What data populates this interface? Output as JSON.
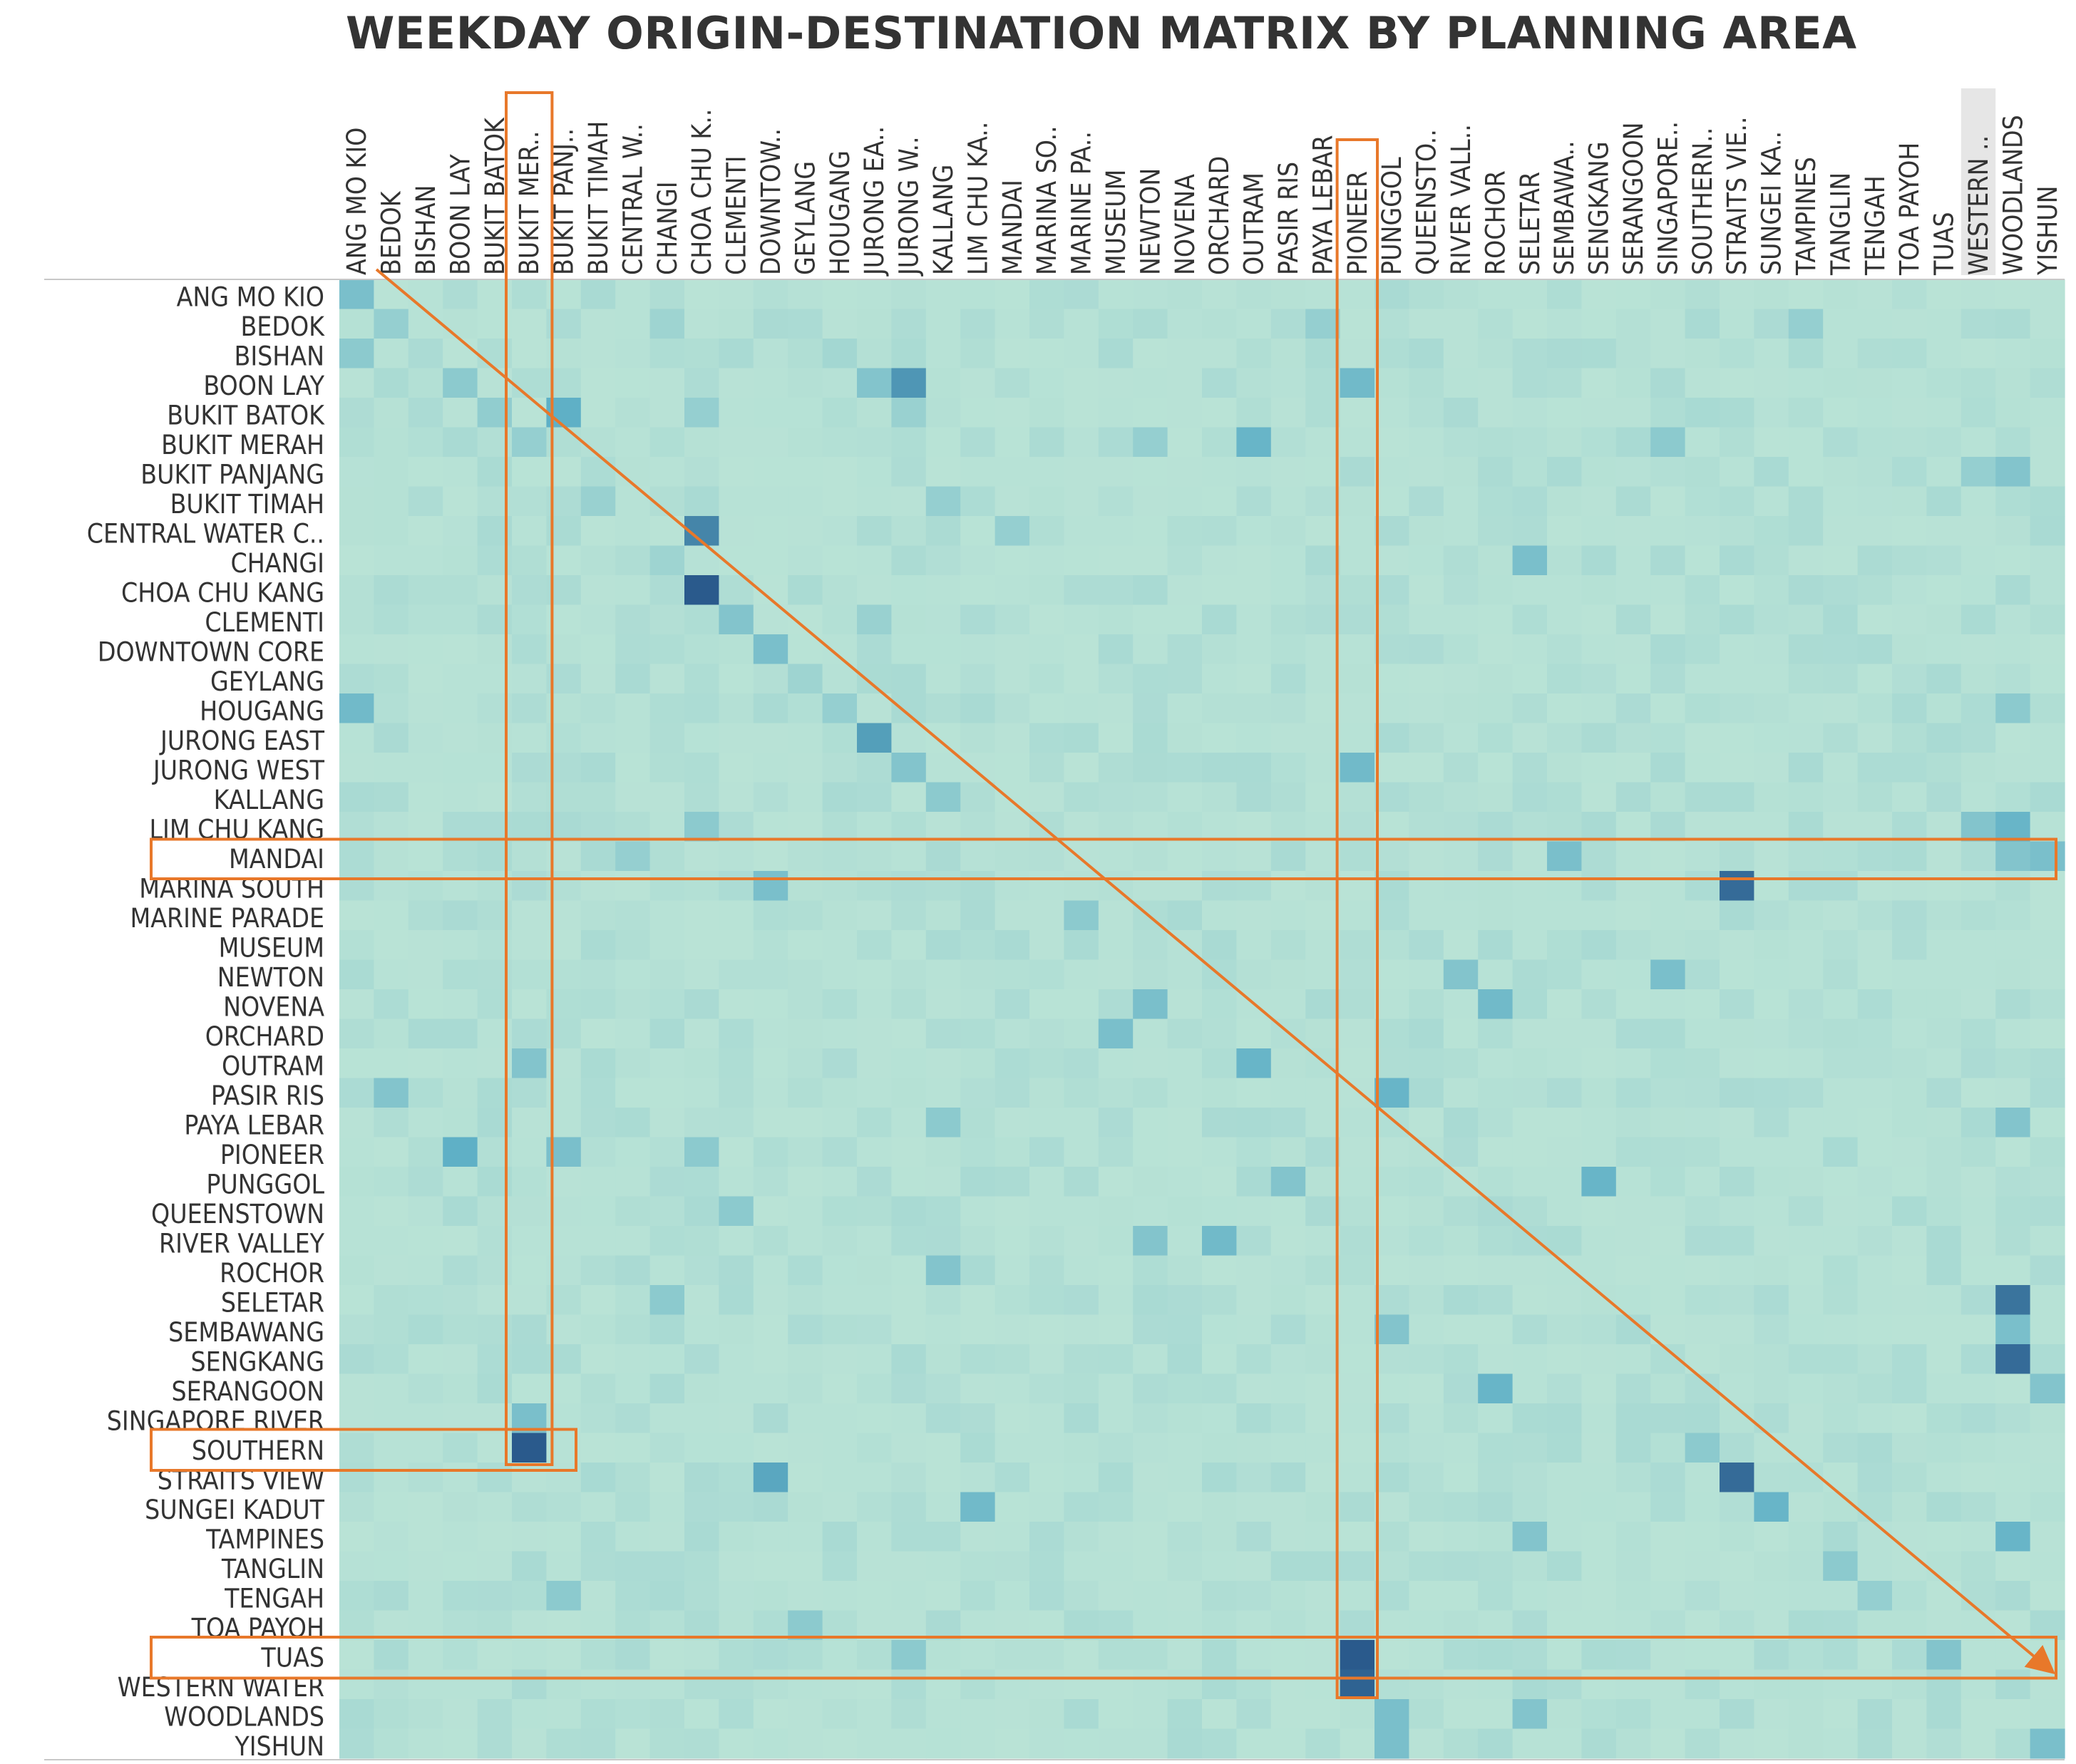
{
  "chart_data": {
    "type": "heatmap",
    "title": "WEEKDAY ORIGIN-DESTINATION MATRIX BY PLANNING AREA",
    "xlabel": "",
    "ylabel": "",
    "legend": "none",
    "grid": false,
    "columns": [
      "ANG MO KIO",
      "BEDOK",
      "BISHAN",
      "BOON LAY",
      "BUKIT BATOK",
      "BUKIT MER..",
      "BUKIT PANJ..",
      "BUKIT TIMAH",
      "CENTRAL W..",
      "CHANGI",
      "CHOA CHU K..",
      "CLEMENTI",
      "DOWNTOW..",
      "GEYLANG",
      "HOUGANG",
      "JURONG EA..",
      "JURONG W..",
      "KALLANG",
      "LIM CHU KA..",
      "MANDAI",
      "MARINA SO..",
      "MARINE PA..",
      "MUSEUM",
      "NEWTON",
      "NOVENA",
      "ORCHARD",
      "OUTRAM",
      "PASIR RIS",
      "PAYA LEBAR",
      "PIONEER",
      "PUNGGOL",
      "QUEENSTO..",
      "RIVER VALL..",
      "ROCHOR",
      "SELETAR",
      "SEMBAWA..",
      "SENGKANG",
      "SERANGOON",
      "SINGAPORE..",
      "SOUTHERN..",
      "STRAITS VIE..",
      "SUNGEI KA..",
      "TAMPINES",
      "TANGLIN",
      "TENGAH",
      "TOA PAYOH",
      "TUAS",
      "WESTERN ..",
      "WOODLANDS",
      "YISHUN"
    ],
    "rows": [
      "ANG MO KIO",
      "BEDOK",
      "BISHAN",
      "BOON LAY",
      "BUKIT BATOK",
      "BUKIT MERAH",
      "BUKIT PANJANG",
      "BUKIT TIMAH",
      "CENTRAL WATER C..",
      "CHANGI",
      "CHOA CHU KANG",
      "CLEMENTI",
      "DOWNTOWN CORE",
      "GEYLANG",
      "HOUGANG",
      "JURONG EAST",
      "JURONG WEST",
      "KALLANG",
      "LIM CHU KANG",
      "MANDAI",
      "MARINA SOUTH",
      "MARINE PARADE",
      "MUSEUM",
      "NEWTON",
      "NOVENA",
      "ORCHARD",
      "OUTRAM",
      "PASIR RIS",
      "PAYA LEBAR",
      "PIONEER",
      "PUNGGOL",
      "QUEENSTOWN",
      "RIVER VALLEY",
      "ROCHOR",
      "SELETAR",
      "SEMBAWANG",
      "SENGKANG",
      "SERANGOON",
      "SINGAPORE RIVER",
      "SOUTHERN",
      "STRAITS VIEW",
      "SUNGEI KADUT",
      "TAMPINES",
      "TANGLIN",
      "TENGAH",
      "TOA PAYOH",
      "TUAS",
      "WESTERN WATER",
      "WOODLANDS",
      "YISHUN"
    ],
    "color_scale": {
      "low": "#b9e3d6",
      "mid": "#5fb0c6",
      "high": "#2a5a8c"
    },
    "intensity_note": "0 = lightest cell, 1 = darkest cell",
    "hot_cells": [
      {
        "row": "ANG MO KIO",
        "col": "ANG MO KIO",
        "v": 0.35
      },
      {
        "row": "BEDOK",
        "col": "BEDOK",
        "v": 0.2
      },
      {
        "row": "BEDOK",
        "col": "CHANGI",
        "v": 0.15
      },
      {
        "row": "BEDOK",
        "col": "PAYA LEBAR",
        "v": 0.2
      },
      {
        "row": "BEDOK",
        "col": "TAMPINES",
        "v": 0.2
      },
      {
        "row": "BISHAN",
        "col": "ANG MO KIO",
        "v": 0.25
      },
      {
        "row": "BISHAN",
        "col": "HOUGANG",
        "v": 0.12
      },
      {
        "row": "BOON LAY",
        "col": "BOON LAY",
        "v": 0.25
      },
      {
        "row": "BOON LAY",
        "col": "JURONG EA..",
        "v": 0.3
      },
      {
        "row": "BOON LAY",
        "col": "JURONG W..",
        "v": 0.65
      },
      {
        "row": "BOON LAY",
        "col": "PIONEER",
        "v": 0.4
      },
      {
        "row": "BUKIT BATOK",
        "col": "BUKIT BATOK",
        "v": 0.22
      },
      {
        "row": "BUKIT BATOK",
        "col": "BUKIT PANJ..",
        "v": 0.5
      },
      {
        "row": "BUKIT BATOK",
        "col": "CHOA CHU K..",
        "v": 0.2
      },
      {
        "row": "BUKIT BATOK",
        "col": "JURONG W..",
        "v": 0.18
      },
      {
        "row": "BUKIT MERAH",
        "col": "BUKIT MER..",
        "v": 0.2
      },
      {
        "row": "BUKIT MERAH",
        "col": "NEWTON",
        "v": 0.2
      },
      {
        "row": "BUKIT MERAH",
        "col": "OUTRAM",
        "v": 0.45
      },
      {
        "row": "BUKIT MERAH",
        "col": "SINGAPORE..",
        "v": 0.25
      },
      {
        "row": "BUKIT PANJANG",
        "col": "WOODLANDS",
        "v": 0.3
      },
      {
        "row": "BUKIT PANJANG",
        "col": "WESTERN ..",
        "v": 0.2
      },
      {
        "row": "BUKIT TIMAH",
        "col": "BUKIT TIMAH",
        "v": 0.18
      },
      {
        "row": "BUKIT TIMAH",
        "col": "KALLANG",
        "v": 0.2
      },
      {
        "row": "CENTRAL WATER C..",
        "col": "CHOA CHU K..",
        "v": 0.75
      },
      {
        "row": "CENTRAL WATER C..",
        "col": "MANDAI",
        "v": 0.2
      },
      {
        "row": "CHANGI",
        "col": "SELETAR",
        "v": 0.35
      },
      {
        "row": "CHANGI",
        "col": "CHANGI",
        "v": 0.15
      },
      {
        "row": "CHOA CHU KANG",
        "col": "CHOA CHU K..",
        "v": 1.0
      },
      {
        "row": "CLEMENTI",
        "col": "CLEMENTI",
        "v": 0.3
      },
      {
        "row": "CLEMENTI",
        "col": "JURONG EA..",
        "v": 0.18
      },
      {
        "row": "DOWNTOWN CORE",
        "col": "DOWNTOW..",
        "v": 0.35
      },
      {
        "row": "GEYLANG",
        "col": "GEYLANG",
        "v": 0.15
      },
      {
        "row": "HOUGANG",
        "col": "ANG MO KIO",
        "v": 0.4
      },
      {
        "row": "HOUGANG",
        "col": "HOUGANG",
        "v": 0.2
      },
      {
        "row": "HOUGANG",
        "col": "WOODLANDS",
        "v": 0.25
      },
      {
        "row": "JURONG EAST",
        "col": "JURONG EA..",
        "v": 0.6
      },
      {
        "row": "JURONG WEST",
        "col": "JURONG W..",
        "v": 0.3
      },
      {
        "row": "JURONG WEST",
        "col": "PIONEER",
        "v": 0.4
      },
      {
        "row": "KALLANG",
        "col": "KALLANG",
        "v": 0.25
      },
      {
        "row": "LIM CHU KANG",
        "col": "WOODLANDS",
        "v": 0.45
      },
      {
        "row": "LIM CHU KANG",
        "col": "WESTERN ..",
        "v": 0.3
      },
      {
        "row": "LIM CHU KANG",
        "col": "CHOA CHU K..",
        "v": 0.25
      },
      {
        "row": "MANDAI",
        "col": "SEMBAWA..",
        "v": 0.35
      },
      {
        "row": "MANDAI",
        "col": "WOODLANDS",
        "v": 0.3
      },
      {
        "row": "MANDAI",
        "col": "YISHUN",
        "v": 0.35
      },
      {
        "row": "MANDAI",
        "col": "CENTRAL W..",
        "v": 0.2
      },
      {
        "row": "MARINA SOUTH",
        "col": "STRAITS VIE..",
        "v": 0.9
      },
      {
        "row": "MARINA SOUTH",
        "col": "DOWNTOW..",
        "v": 0.35
      },
      {
        "row": "MARINE PARADE",
        "col": "MARINE PA..",
        "v": 0.25
      },
      {
        "row": "NEWTON",
        "col": "RIVER VALL..",
        "v": 0.3
      },
      {
        "row": "NEWTON",
        "col": "SINGAPORE..",
        "v": 0.35
      },
      {
        "row": "NOVENA",
        "col": "NEWTON",
        "v": 0.35
      },
      {
        "row": "NOVENA",
        "col": "ROCHOR",
        "v": 0.4
      },
      {
        "row": "ORCHARD",
        "col": "MUSEUM",
        "v": 0.35
      },
      {
        "row": "OUTRAM",
        "col": "OUTRAM",
        "v": 0.45
      },
      {
        "row": "OUTRAM",
        "col": "BUKIT MER..",
        "v": 0.3
      },
      {
        "row": "PASIR RIS",
        "col": "PUNGGOL",
        "v": 0.45
      },
      {
        "row": "PASIR RIS",
        "col": "BEDOK",
        "v": 0.3
      },
      {
        "row": "PAYA LEBAR",
        "col": "KALLANG",
        "v": 0.25
      },
      {
        "row": "PAYA LEBAR",
        "col": "WOODLANDS",
        "v": 0.3
      },
      {
        "row": "PIONEER",
        "col": "BOON LAY",
        "v": 0.5
      },
      {
        "row": "PIONEER",
        "col": "BUKIT PANJ..",
        "v": 0.35
      },
      {
        "row": "PIONEER",
        "col": "CHOA CHU K..",
        "v": 0.25
      },
      {
        "row": "PUNGGOL",
        "col": "SENGKANG",
        "v": 0.45
      },
      {
        "row": "PUNGGOL",
        "col": "PASIR RIS",
        "v": 0.3
      },
      {
        "row": "QUEENSTOWN",
        "col": "CLEMENTI",
        "v": 0.25
      },
      {
        "row": "RIVER VALLEY",
        "col": "ORCHARD",
        "v": 0.4
      },
      {
        "row": "RIVER VALLEY",
        "col": "NEWTON",
        "v": 0.3
      },
      {
        "row": "ROCHOR",
        "col": "KALLANG",
        "v": 0.3
      },
      {
        "row": "SELETAR",
        "col": "WOODLANDS",
        "v": 0.85
      },
      {
        "row": "SELETAR",
        "col": "CHANGI",
        "v": 0.25
      },
      {
        "row": "SEMBAWANG",
        "col": "WOODLANDS",
        "v": 0.35
      },
      {
        "row": "SEMBAWANG",
        "col": "PUNGGOL",
        "v": 0.3
      },
      {
        "row": "SENGKANG",
        "col": "WOODLANDS",
        "v": 0.9
      },
      {
        "row": "SERANGOON",
        "col": "ROCHOR",
        "v": 0.45
      },
      {
        "row": "SERANGOON",
        "col": "YISHUN",
        "v": 0.3
      },
      {
        "row": "SINGAPORE RIVER",
        "col": "BUKIT MER..",
        "v": 0.35
      },
      {
        "row": "SOUTHERN",
        "col": "BUKIT MER..",
        "v": 1.0
      },
      {
        "row": "SOUTHERN",
        "col": "SOUTHERN..",
        "v": 0.25
      },
      {
        "row": "STRAITS VIEW",
        "col": "STRAITS VIE..",
        "v": 0.9
      },
      {
        "row": "STRAITS VIEW",
        "col": "DOWNTOW..",
        "v": 0.55
      },
      {
        "row": "SUNGEI KADUT",
        "col": "LIM CHU KA..",
        "v": 0.4
      },
      {
        "row": "SUNGEI KADUT",
        "col": "SUNGEI KA..",
        "v": 0.45
      },
      {
        "row": "TAMPINES",
        "col": "WOODLANDS",
        "v": 0.45
      },
      {
        "row": "TAMPINES",
        "col": "SELETAR",
        "v": 0.3
      },
      {
        "row": "TANGLIN",
        "col": "TANGLIN",
        "v": 0.25
      },
      {
        "row": "TENGAH",
        "col": "BUKIT PANJ..",
        "v": 0.25
      },
      {
        "row": "TENGAH",
        "col": "TENGAH",
        "v": 0.2
      },
      {
        "row": "TOA PAYOH",
        "col": "GEYLANG",
        "v": 0.25
      },
      {
        "row": "TUAS",
        "col": "PIONEER",
        "v": 1.0
      },
      {
        "row": "TUAS",
        "col": "TUAS",
        "v": 0.3
      },
      {
        "row": "TUAS",
        "col": "JURONG W..",
        "v": 0.25
      },
      {
        "row": "WESTERN WATER",
        "col": "PIONEER",
        "v": 0.95
      },
      {
        "row": "WOODLANDS",
        "col": "PUNGGOL",
        "v": 0.35
      },
      {
        "row": "WOODLANDS",
        "col": "SELETAR",
        "v": 0.3
      },
      {
        "row": "YISHUN",
        "col": "PUNGGOL",
        "v": 0.35
      },
      {
        "row": "YISHUN",
        "col": "YISHUN",
        "v": 0.35
      }
    ],
    "annotations": {
      "highlighted_columns": [
        "BUKIT MER..",
        "PIONEER"
      ],
      "highlighted_rows": [
        "MANDAI",
        "TUAS",
        "SOUTHERN"
      ],
      "highlighted_cells": [
        {
          "row": "SOUTHERN",
          "col": "BUKIT MER.."
        }
      ],
      "diagonal_arrow": true,
      "annotation_color": "#e8782a",
      "highlighted_column_header": "WESTERN .."
    }
  }
}
